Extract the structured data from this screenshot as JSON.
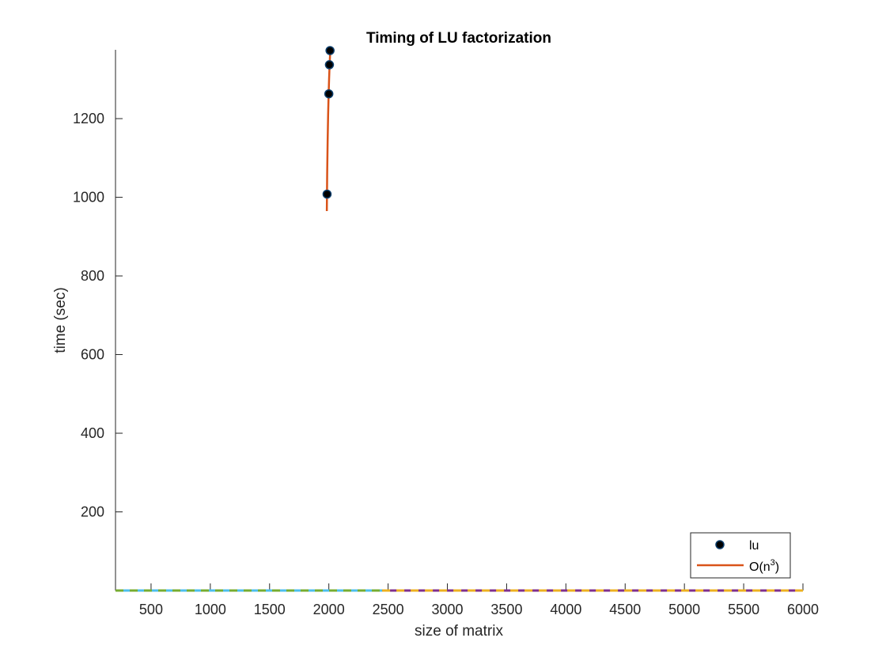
{
  "chart_data": {
    "type": "scatter",
    "title": "Timing of LU factorization",
    "xlabel": "size of matrix",
    "ylabel": "time (sec)",
    "xlim": [
      200,
      6000
    ],
    "ylim": [
      0,
      1375
    ],
    "xticks": [
      500,
      1000,
      1500,
      2000,
      2500,
      3000,
      3500,
      4000,
      4500,
      5000,
      5500,
      6000
    ],
    "yticks": [
      200,
      400,
      600,
      800,
      1000,
      1200
    ],
    "grid": false,
    "legend_position": "bottom-right",
    "series": [
      {
        "name": "lu",
        "kind": "markers",
        "color": "#000000",
        "edge_color": "#0b3d6b",
        "x": [
          1985,
          2000,
          2005,
          2010
        ],
        "y": [
          1008,
          1263,
          1337,
          1373
        ]
      },
      {
        "name": "O(n^3)",
        "kind": "line",
        "color": "#d95319",
        "x": [
          1983,
          1986,
          1990,
          1994,
          1998,
          2002,
          2006,
          2010,
          2012
        ],
        "y": [
          965,
          1060,
          1145,
          1210,
          1260,
          1300,
          1333,
          1360,
          1372
        ]
      },
      {
        "kind": "dashed-line",
        "colors": [
          "#4dbeee",
          "#77ac30"
        ],
        "x": [
          200,
          2450
        ],
        "y": [
          0,
          0
        ]
      },
      {
        "kind": "dashed-line",
        "colors": [
          "#7e2f8e",
          "#edb120"
        ],
        "x": [
          2450,
          6000
        ],
        "y": [
          0,
          0
        ]
      }
    ],
    "legend": {
      "entries": [
        {
          "label": "lu",
          "marker": "circle"
        },
        {
          "label_base": "O(n",
          "label_sup": "3",
          "label_end": ")",
          "marker": "line"
        }
      ]
    }
  }
}
